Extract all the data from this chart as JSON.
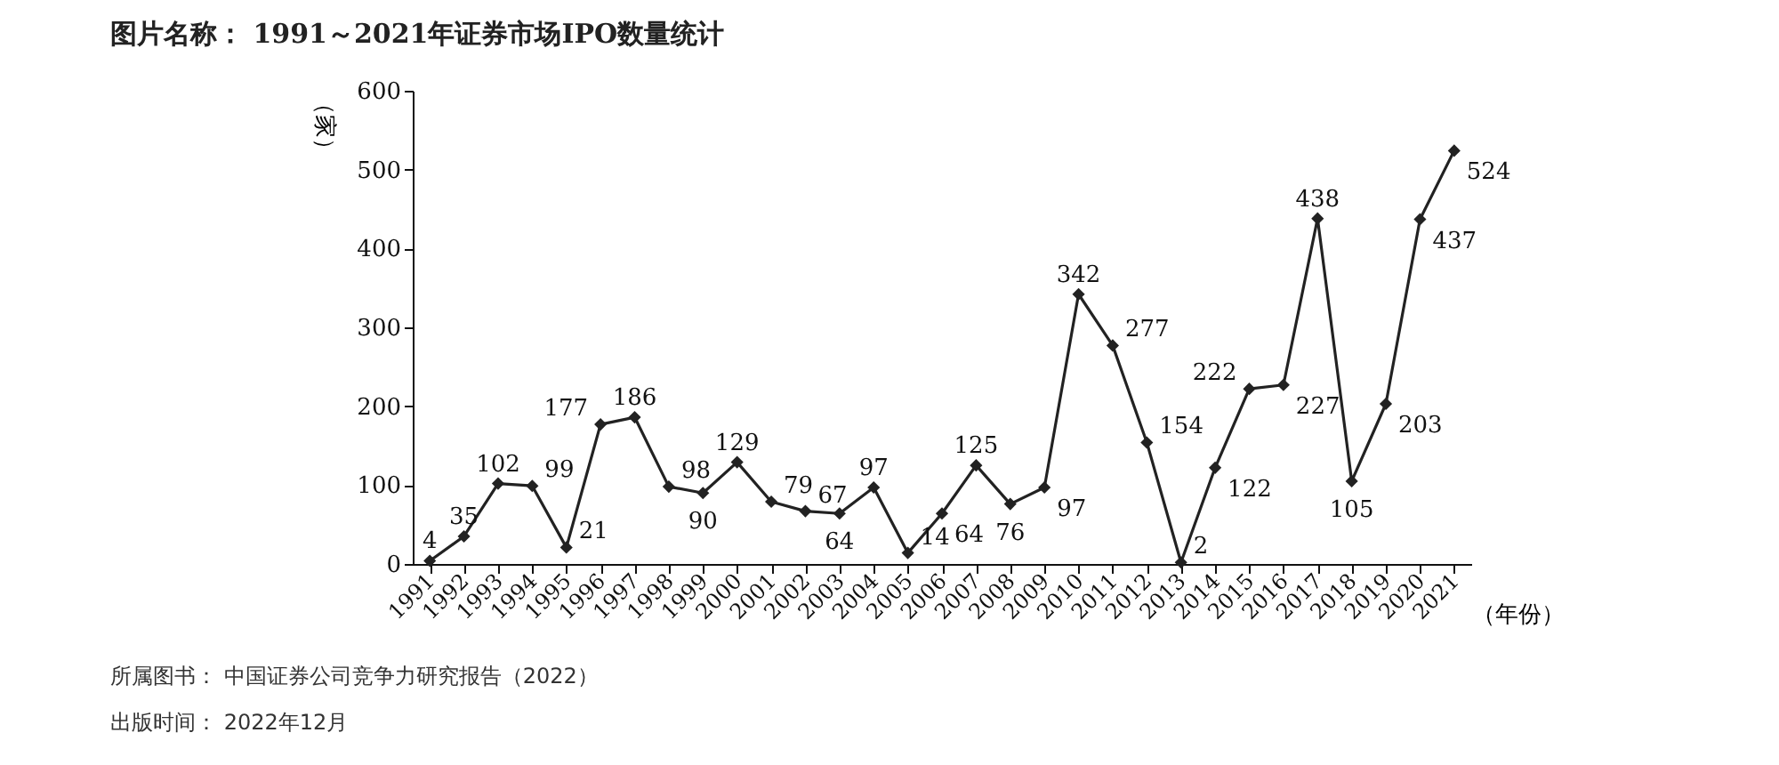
{
  "chart_data": {
    "type": "line",
    "title": "图片名称： 1991～2021年证券市场IPO数量统计",
    "xlabel": "（年份）",
    "ylabel": "（家）",
    "categories": [
      "1991",
      "1992",
      "1993",
      "1994",
      "1995",
      "1996",
      "1997",
      "1998",
      "1999",
      "2000",
      "2001",
      "2002",
      "2003",
      "2004",
      "2005",
      "2006",
      "2007",
      "2008",
      "2009",
      "2010",
      "2011",
      "2012",
      "2013",
      "2014",
      "2015",
      "2016",
      "2017",
      "2018",
      "2019",
      "2020",
      "2021"
    ],
    "series": [
      {
        "color": "#222222",
        "values": [
          4,
          35,
          102,
          99,
          21,
          177,
          186,
          98,
          90,
          129,
          79,
          67,
          64,
          97,
          14,
          64,
          125,
          76,
          97,
          342,
          277,
          154,
          2,
          122,
          222,
          227,
          438,
          105,
          203,
          437,
          524
        ]
      }
    ],
    "ylim": [
      0,
      600
    ],
    "yticks": [
      0,
      100,
      200,
      300,
      400,
      500,
      600
    ],
    "grid": false,
    "legend": false,
    "marker": "diamond",
    "line_style": "solid",
    "data_labels": true,
    "annotations": [
      "所属图书： 中国证券公司竞争力研究报告（2022）",
      "出版时间： 2022年12月"
    ]
  }
}
